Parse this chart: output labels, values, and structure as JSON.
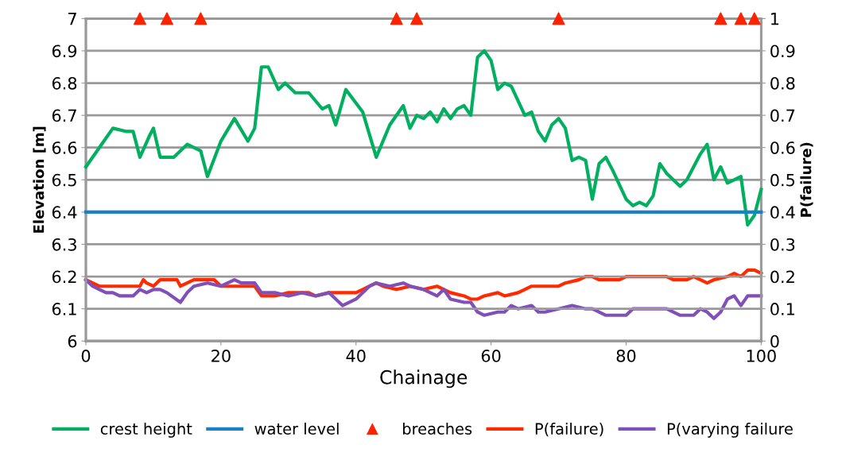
{
  "chart_data": {
    "type": "line",
    "xlabel": "Chainage",
    "ylabel": "Elevation [m]",
    "y2label": "P(failure)",
    "xlim": [
      0,
      100
    ],
    "xticks": [
      0,
      20,
      40,
      60,
      80,
      100
    ],
    "ylim": [
      6,
      7
    ],
    "yticks": [
      6,
      6.1,
      6.2,
      6.3,
      6.4,
      6.5,
      6.6,
      6.7,
      6.8,
      6.9,
      7
    ],
    "y2lim": [
      0,
      1
    ],
    "y2ticks": [
      0,
      0.1,
      0.2,
      0.3,
      0.4,
      0.5,
      0.6,
      0.7,
      0.8,
      0.9,
      1
    ],
    "grid": "y",
    "legend": "bottom",
    "marker": "none",
    "line_style": "solid",
    "series": [
      {
        "name": "crest height",
        "color": "#00b060",
        "x": [
          0,
          2,
          4,
          6,
          7,
          8,
          9.5,
          10,
          11,
          13,
          15,
          17,
          18,
          20,
          22,
          24,
          25,
          26,
          27,
          28.5,
          29.5,
          31,
          33,
          35,
          36,
          37,
          38.5,
          41,
          43,
          45,
          47,
          48,
          49,
          50,
          51,
          52,
          53,
          54,
          55,
          56,
          57,
          58,
          59,
          60,
          61,
          62,
          63,
          65,
          66,
          67,
          68,
          69,
          70,
          71,
          72,
          73,
          74,
          75,
          76,
          77,
          78,
          80,
          81,
          82,
          83,
          84,
          85,
          86,
          88,
          89,
          91,
          92,
          93,
          94,
          95,
          96,
          97,
          98,
          99,
          100
        ],
        "values": [
          6.54,
          6.6,
          6.66,
          6.65,
          6.65,
          6.57,
          6.64,
          6.66,
          6.57,
          6.57,
          6.61,
          6.59,
          6.51,
          6.62,
          6.69,
          6.62,
          6.66,
          6.85,
          6.85,
          6.78,
          6.8,
          6.77,
          6.77,
          6.72,
          6.73,
          6.67,
          6.78,
          6.71,
          6.57,
          6.67,
          6.73,
          6.66,
          6.7,
          6.69,
          6.71,
          6.68,
          6.72,
          6.69,
          6.72,
          6.73,
          6.7,
          6.88,
          6.9,
          6.87,
          6.78,
          6.8,
          6.79,
          6.7,
          6.71,
          6.65,
          6.62,
          6.67,
          6.69,
          6.66,
          6.56,
          6.57,
          6.56,
          6.44,
          6.55,
          6.57,
          6.53,
          6.44,
          6.42,
          6.43,
          6.42,
          6.45,
          6.55,
          6.52,
          6.48,
          6.5,
          6.58,
          6.61,
          6.5,
          6.54,
          6.49,
          6.5,
          6.51,
          6.36,
          6.39,
          6.47
        ]
      },
      {
        "name": "water level",
        "color": "#1a80c8",
        "x": [
          0,
          100
        ],
        "values": [
          6.4,
          6.4
        ]
      },
      {
        "name": "breaches",
        "type": "scatter",
        "marker": "triangle",
        "color": "#ff2200",
        "x": [
          8,
          12,
          17,
          46,
          49,
          70,
          94,
          97,
          99
        ],
        "values": [
          7,
          7,
          7,
          7,
          7,
          7,
          7,
          7,
          7
        ]
      },
      {
        "name": "P(failure)",
        "axis": "y2",
        "color": "#ff2a00",
        "x": [
          0,
          1,
          2,
          8,
          8.5,
          9,
          10,
          11,
          13.5,
          14,
          16,
          19,
          20,
          22,
          25,
          26,
          28,
          30,
          33,
          34,
          36,
          38,
          40,
          41,
          42,
          43,
          44,
          46,
          48,
          50,
          52,
          53,
          54,
          56,
          57,
          58,
          59,
          61,
          62,
          64,
          65,
          66,
          70,
          71,
          73,
          74,
          75,
          76,
          79,
          80,
          86,
          87,
          89,
          90,
          91,
          92,
          93,
          95,
          96,
          97,
          98,
          99,
          100
        ],
        "values": [
          0.19,
          0.18,
          0.17,
          0.17,
          0.19,
          0.18,
          0.17,
          0.19,
          0.19,
          0.17,
          0.19,
          0.19,
          0.17,
          0.17,
          0.17,
          0.14,
          0.14,
          0.15,
          0.15,
          0.14,
          0.15,
          0.15,
          0.15,
          0.16,
          0.17,
          0.18,
          0.17,
          0.16,
          0.17,
          0.16,
          0.17,
          0.16,
          0.15,
          0.14,
          0.13,
          0.13,
          0.14,
          0.15,
          0.14,
          0.15,
          0.16,
          0.17,
          0.17,
          0.18,
          0.19,
          0.2,
          0.2,
          0.19,
          0.19,
          0.2,
          0.2,
          0.19,
          0.19,
          0.2,
          0.19,
          0.18,
          0.19,
          0.2,
          0.21,
          0.2,
          0.22,
          0.22,
          0.21
        ]
      },
      {
        "name": "P(varying failure",
        "axis": "y2",
        "color": "#8050b8",
        "x": [
          0,
          1,
          2,
          3,
          4,
          5,
          7,
          8,
          9,
          10,
          11,
          12,
          14,
          15,
          16,
          18,
          20,
          22,
          23,
          25,
          26,
          28,
          30,
          32,
          34,
          36,
          38,
          40,
          42,
          43,
          45,
          47,
          48,
          50,
          52,
          53,
          54,
          56,
          57,
          58,
          59,
          61,
          62,
          63,
          64,
          66,
          67,
          68,
          70,
          72,
          74,
          75,
          77,
          80,
          81,
          86,
          88,
          90,
          91,
          92,
          93,
          94,
          95,
          96,
          97,
          98,
          100
        ],
        "values": [
          0.19,
          0.17,
          0.16,
          0.15,
          0.15,
          0.14,
          0.14,
          0.16,
          0.15,
          0.16,
          0.16,
          0.15,
          0.12,
          0.15,
          0.17,
          0.18,
          0.17,
          0.19,
          0.18,
          0.18,
          0.15,
          0.15,
          0.14,
          0.15,
          0.14,
          0.15,
          0.11,
          0.13,
          0.17,
          0.18,
          0.17,
          0.18,
          0.17,
          0.16,
          0.14,
          0.16,
          0.13,
          0.12,
          0.12,
          0.09,
          0.08,
          0.09,
          0.09,
          0.11,
          0.1,
          0.11,
          0.09,
          0.09,
          0.1,
          0.11,
          0.1,
          0.1,
          0.08,
          0.08,
          0.1,
          0.1,
          0.08,
          0.08,
          0.1,
          0.09,
          0.07,
          0.09,
          0.13,
          0.14,
          0.11,
          0.14,
          0.14
        ]
      }
    ]
  }
}
